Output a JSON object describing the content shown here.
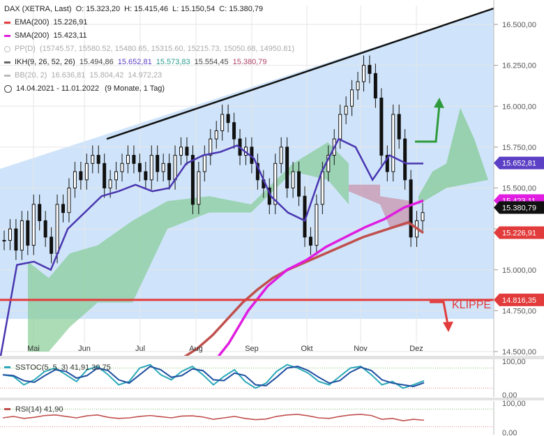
{
  "chart_data": {
    "type": "line",
    "title": "DAX (XETRA, Last)",
    "ohlc": {
      "open_label": "O:",
      "open": "15.323,20",
      "high_label": "H:",
      "high": "15.415,46",
      "low_label": "L:",
      "low": "15.150,54",
      "close_label": "C:",
      "close": "15.380,79"
    },
    "indicators": [
      {
        "name": "EMA(200)",
        "values": [
          "15.226,91"
        ],
        "color": "#e23b3b"
      },
      {
        "name": "SMA(200)",
        "values": [
          "15.423,11"
        ],
        "color": "#e01de0"
      },
      {
        "name": "PP(D)",
        "values": [
          "(15745.57, 15580.52, 15480.65, 15315.60, 15215.73, 15050.68, 14950.81)"
        ],
        "color": "#aaaaaa"
      },
      {
        "name": "IKH(9, 26, 52, 26)",
        "values": [
          "15.494,86",
          "15.652,81",
          "15.573,83",
          "15.554,45",
          "15.380,79"
        ],
        "value_colors": [
          "#444444",
          "#5b3fc4",
          "#2a9d8f",
          "#444444",
          "#b0456a"
        ],
        "color": "#666666"
      },
      {
        "name": "BB(20, 2)",
        "values": [
          "16.636,81",
          "15.804,42",
          "14.972,23"
        ],
        "color": "#aaaaaa"
      }
    ],
    "period": "14.04.2021 - 11.01.2022",
    "period_detail": "(9 Monate, 1 Tag)",
    "x_labels": [
      "Mai",
      "Jun",
      "Jul",
      "Aug",
      "Sep",
      "Okt",
      "Nov",
      "Dez"
    ],
    "y_ticks": [
      "16.500,00",
      "16.250,00",
      "16.000,00",
      "15.750,00",
      "15.500,00",
      "15.250,00",
      "15.000,00",
      "14.750,00",
      "14.500,00"
    ],
    "ylim": [
      14500,
      16600
    ],
    "closes": [
      15180,
      15250,
      15120,
      15300,
      15150,
      15400,
      15300,
      15200,
      15100,
      15400,
      15350,
      15500,
      15600,
      15550,
      15650,
      15700,
      15650,
      15500,
      15550,
      15600,
      15650,
      15700,
      15650,
      15600,
      15550,
      15700,
      15600,
      15650,
      15550,
      15700,
      15750,
      15700,
      15400,
      15600,
      15700,
      15800,
      15850,
      15950,
      15900,
      15800,
      15700,
      15750,
      15650,
      15550,
      15500,
      15400,
      15650,
      15750,
      15500,
      15600,
      15450,
      15200,
      15150,
      15400,
      15600,
      15700,
      15800,
      15950,
      16000,
      16100,
      16150,
      16250,
      16200,
      16050,
      15700,
      15600,
      15950,
      15800,
      15550,
      15200,
      15300,
      15350
    ],
    "ema200": [
      14400,
      14460,
      14520,
      14600,
      14700,
      14800,
      14880,
      14950,
      15000,
      15040,
      15080,
      15120,
      15160,
      15200,
      15230,
      15260,
      15290,
      15226
    ],
    "sma200": [
      14400,
      14550,
      14750,
      14900,
      15000,
      15060,
      15140,
      15200,
      15260,
      15310,
      15380,
      15423
    ],
    "kijun": [
      14450,
      15030,
      15050,
      15000,
      15250,
      15350,
      15450,
      15480,
      15520,
      15480,
      15500,
      15650,
      15700,
      15720,
      15760,
      15680,
      15450,
      15350,
      15300,
      15600,
      15800,
      15750,
      15550,
      15700,
      15650,
      15650
    ],
    "resistance_line": {
      "from": [
        15800,
        "Jun"
      ],
      "to": [
        16600,
        "Jan"
      ]
    },
    "support_level": 14816.35,
    "price_tags": [
      {
        "label": "15.652,81",
        "value": 15652.81,
        "color": "#5b3fc4"
      },
      {
        "label": "15.423,11",
        "value": 15423.11,
        "color": "#e01de0"
      },
      {
        "label": "15.380,79",
        "value": 15380.79,
        "color": "#111111"
      },
      {
        "label": "15.226,91",
        "value": 15226.91,
        "color": "#e23b3b"
      },
      {
        "label": "14.816,35",
        "value": 14816.35,
        "color": "#e23b3b"
      }
    ],
    "annotation": "KLIPPE",
    "subcharts": [
      {
        "name": "SSTOC(5, 5, 3)",
        "values": [
          "41,91",
          "30,75"
        ],
        "y_ticks": [
          "100,00",
          "0,00"
        ],
        "ylim": [
          0,
          100
        ],
        "color": "#2aa8b8"
      },
      {
        "name": "RSI(14)",
        "values": [
          "41,90"
        ],
        "y_ticks": [
          "100,00",
          "0,00"
        ],
        "ylim": [
          0,
          100
        ],
        "color": "#c0504d"
      }
    ]
  }
}
